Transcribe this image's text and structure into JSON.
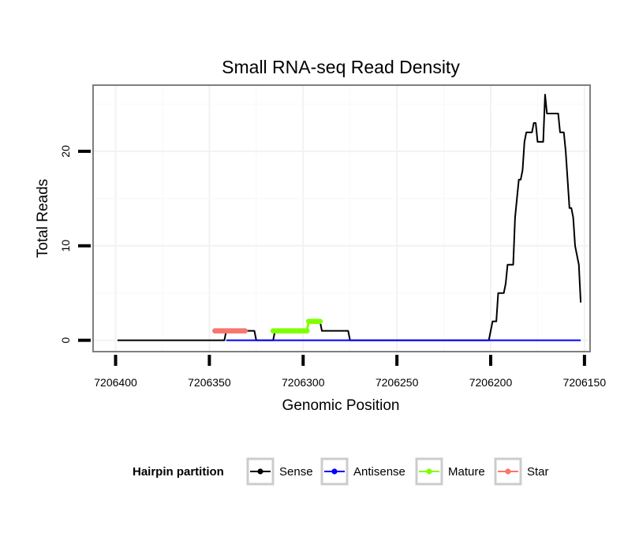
{
  "chart_data": {
    "type": "line",
    "title": "Small RNA-seq Read Density",
    "xlabel": "Genomic Position",
    "ylabel": "Total Reads",
    "x_reversed": true,
    "xlim": [
      7206412,
      7206147
    ],
    "ylim": [
      -1.2,
      27
    ],
    "xticks": [
      7206400,
      7206350,
      7206300,
      7206250,
      7206200,
      7206150
    ],
    "xtick_labels": [
      "7206400",
      "7206350",
      "7206300",
      "7206250",
      "7206200",
      "7206150"
    ],
    "yticks": [
      0,
      10,
      20
    ],
    "ytick_labels": [
      "0",
      "10",
      "20"
    ],
    "grid": true,
    "legend": {
      "title": "Hairpin partition",
      "position": "bottom",
      "items": [
        {
          "label": "Sense",
          "color": "#000000"
        },
        {
          "label": "Antisense",
          "color": "#0000FF"
        },
        {
          "label": "Mature",
          "color": "#7FFF00"
        },
        {
          "label": "Star",
          "color": "#F8766D"
        }
      ]
    },
    "series": [
      {
        "name": "Sense",
        "color": "#000000",
        "points": [
          [
            7206399,
            0
          ],
          [
            7206342,
            0
          ],
          [
            7206341,
            1
          ],
          [
            7206341,
            1
          ],
          [
            7206326,
            1
          ],
          [
            7206325,
            0
          ],
          [
            7206316,
            0
          ],
          [
            7206315,
            1
          ],
          [
            7206298,
            1
          ],
          [
            7206297,
            2
          ],
          [
            7206291,
            2
          ],
          [
            7206290,
            1
          ],
          [
            7206276,
            1
          ],
          [
            7206275,
            0
          ],
          [
            7206201,
            0
          ],
          [
            7206199,
            2
          ],
          [
            7206197,
            2
          ],
          [
            7206196,
            5
          ],
          [
            7206193,
            5
          ],
          [
            7206192,
            6
          ],
          [
            7206191,
            8
          ],
          [
            7206188,
            8
          ],
          [
            7206187,
            13
          ],
          [
            7206186,
            15
          ],
          [
            7206185,
            17
          ],
          [
            7206184,
            17
          ],
          [
            7206183,
            18
          ],
          [
            7206182,
            21
          ],
          [
            7206181,
            22
          ],
          [
            7206178,
            22
          ],
          [
            7206177,
            23
          ],
          [
            7206176,
            23
          ],
          [
            7206175,
            21
          ],
          [
            7206172,
            21
          ],
          [
            7206171,
            26
          ],
          [
            7206170,
            24
          ],
          [
            7206164,
            24
          ],
          [
            7206163,
            22
          ],
          [
            7206161,
            22
          ],
          [
            7206160,
            20
          ],
          [
            7206158,
            14
          ],
          [
            7206157,
            14
          ],
          [
            7206156,
            13
          ],
          [
            7206155,
            10
          ],
          [
            7206153,
            8
          ],
          [
            7206152,
            4
          ]
        ]
      },
      {
        "name": "Antisense",
        "color": "#0000FF",
        "points": [
          [
            7206341,
            0
          ],
          [
            7206152,
            0
          ]
        ]
      },
      {
        "name": "Mature",
        "color": "#7FFF00",
        "points": [
          [
            7206316,
            1
          ],
          [
            7206315,
            1
          ],
          [
            7206314,
            1
          ],
          [
            7206313,
            1
          ],
          [
            7206312,
            1
          ],
          [
            7206311,
            1
          ],
          [
            7206310,
            1
          ],
          [
            7206309,
            1
          ],
          [
            7206308,
            1
          ],
          [
            7206307,
            1
          ],
          [
            7206306,
            1
          ],
          [
            7206305,
            1
          ],
          [
            7206304,
            1
          ],
          [
            7206303,
            1
          ],
          [
            7206302,
            1
          ],
          [
            7206301,
            1
          ],
          [
            7206300,
            1
          ],
          [
            7206299,
            1
          ],
          [
            7206298,
            1
          ],
          [
            7206297,
            2
          ],
          [
            7206296,
            2
          ],
          [
            7206295,
            2
          ],
          [
            7206294,
            2
          ],
          [
            7206293,
            2
          ],
          [
            7206292,
            2
          ],
          [
            7206291,
            2
          ]
        ]
      },
      {
        "name": "Star",
        "color": "#F8766D",
        "points": [
          [
            7206347,
            1
          ],
          [
            7206346,
            1
          ],
          [
            7206345,
            1
          ],
          [
            7206344,
            1
          ],
          [
            7206343,
            1
          ],
          [
            7206342,
            1
          ],
          [
            7206341,
            1
          ],
          [
            7206340,
            1
          ],
          [
            7206339,
            1
          ],
          [
            7206338,
            1
          ],
          [
            7206337,
            1
          ],
          [
            7206336,
            1
          ],
          [
            7206335,
            1
          ],
          [
            7206334,
            1
          ],
          [
            7206333,
            1
          ],
          [
            7206332,
            1
          ],
          [
            7206331,
            1
          ]
        ]
      }
    ]
  }
}
